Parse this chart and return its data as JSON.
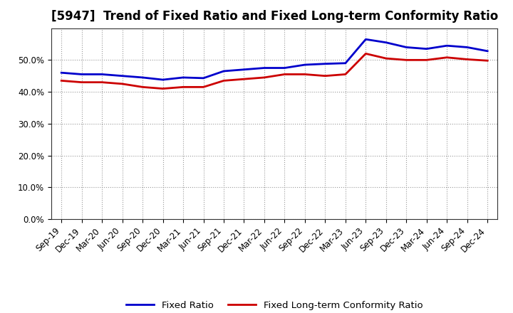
{
  "title": "[5947]  Trend of Fixed Ratio and Fixed Long-term Conformity Ratio",
  "x_labels": [
    "Sep-19",
    "Dec-19",
    "Mar-20",
    "Jun-20",
    "Sep-20",
    "Dec-20",
    "Mar-21",
    "Jun-21",
    "Sep-21",
    "Dec-21",
    "Mar-22",
    "Jun-22",
    "Sep-22",
    "Dec-22",
    "Mar-23",
    "Jun-23",
    "Sep-23",
    "Dec-23",
    "Mar-24",
    "Jun-24",
    "Sep-24",
    "Dec-24"
  ],
  "fixed_ratio": [
    46.0,
    45.5,
    45.5,
    45.0,
    44.5,
    43.8,
    44.5,
    44.3,
    46.5,
    47.0,
    47.5,
    47.5,
    48.5,
    48.8,
    49.0,
    56.5,
    55.5,
    54.0,
    53.5,
    54.5,
    54.0,
    52.8
  ],
  "fixed_lt_ratio": [
    43.5,
    43.0,
    43.0,
    42.5,
    41.5,
    41.0,
    41.5,
    41.5,
    43.5,
    44.0,
    44.5,
    45.5,
    45.5,
    45.0,
    45.5,
    52.0,
    50.5,
    50.0,
    50.0,
    50.8,
    50.2,
    49.8
  ],
  "fixed_ratio_color": "#0000CC",
  "fixed_lt_ratio_color": "#CC0000",
  "ylim": [
    0,
    60
  ],
  "yticks": [
    0,
    10,
    20,
    30,
    40,
    50
  ],
  "ytick_labels": [
    "0.0%",
    "10.0%",
    "20.0%",
    "30.0%",
    "40.0%",
    "50.0%"
  ],
  "bg_color": "#FFFFFF",
  "plot_bg_color": "#FFFFFF",
  "grid_color": "#999999",
  "legend_fixed": "Fixed Ratio",
  "legend_lt": "Fixed Long-term Conformity Ratio",
  "line_width": 2.0,
  "title_fontsize": 12,
  "tick_fontsize": 8.5,
  "legend_fontsize": 9.5
}
